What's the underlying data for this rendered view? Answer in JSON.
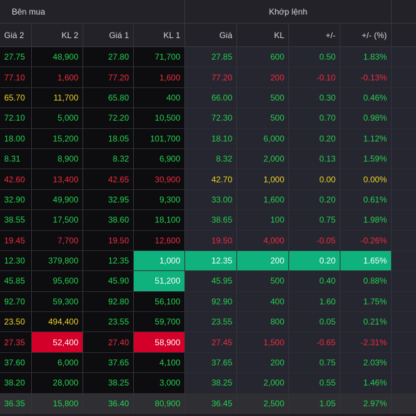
{
  "groups": {
    "buy": "Bên mua",
    "match": "Khớp lệnh"
  },
  "columns": [
    "Giá 2",
    "KL 2",
    "Giá 1",
    "KL 1",
    "Giá",
    "KL",
    "+/-",
    "+/- (%)"
  ],
  "colors": {
    "up": "#22d34e",
    "down": "#ef2b3f",
    "ref": "#ecd524",
    "flash_up": "#0fb27d",
    "flash_down": "#d3002a"
  },
  "rows": [
    {
      "cells": [
        "27.75",
        "48,900",
        "27.80",
        "71,700",
        "27.85",
        "600",
        "0.50",
        "1.83%"
      ],
      "colors": [
        "g",
        "g",
        "g",
        "g",
        "g",
        "g",
        "g",
        "g"
      ],
      "hl": [
        "",
        "",
        "",
        "",
        "",
        "",
        "",
        ""
      ]
    },
    {
      "cells": [
        "77.10",
        "1,600",
        "77.20",
        "1,600",
        "77.20",
        "200",
        "-0.10",
        "-0.13%"
      ],
      "colors": [
        "r",
        "r",
        "r",
        "r",
        "r",
        "r",
        "r",
        "r"
      ],
      "hl": [
        "",
        "",
        "",
        "",
        "",
        "",
        "",
        ""
      ]
    },
    {
      "cells": [
        "65.70",
        "11,700",
        "65.80",
        "400",
        "66.00",
        "500",
        "0.30",
        "0.46%"
      ],
      "colors": [
        "y",
        "y",
        "g",
        "g",
        "g",
        "g",
        "g",
        "g"
      ],
      "hl": [
        "",
        "",
        "",
        "",
        "",
        "",
        "",
        ""
      ]
    },
    {
      "cells": [
        "72.10",
        "5,000",
        "72.20",
        "10,500",
        "72.30",
        "500",
        "0.70",
        "0.98%"
      ],
      "colors": [
        "g",
        "g",
        "g",
        "g",
        "g",
        "g",
        "g",
        "g"
      ],
      "hl": [
        "",
        "",
        "",
        "",
        "",
        "",
        "",
        ""
      ]
    },
    {
      "cells": [
        "18.00",
        "15,200",
        "18.05",
        "101,700",
        "18.10",
        "6,000",
        "0.20",
        "1.12%"
      ],
      "colors": [
        "g",
        "g",
        "g",
        "g",
        "g",
        "g",
        "g",
        "g"
      ],
      "hl": [
        "",
        "",
        "",
        "",
        "",
        "",
        "",
        ""
      ]
    },
    {
      "cells": [
        "8.31",
        "8,900",
        "8.32",
        "6,900",
        "8.32",
        "2,000",
        "0.13",
        "1.59%"
      ],
      "colors": [
        "g",
        "g",
        "g",
        "g",
        "g",
        "g",
        "g",
        "g"
      ],
      "hl": [
        "",
        "",
        "",
        "",
        "",
        "",
        "",
        ""
      ]
    },
    {
      "cells": [
        "42.60",
        "13,400",
        "42.65",
        "30,900",
        "42.70",
        "1,000",
        "0.00",
        "0.00%"
      ],
      "colors": [
        "r",
        "r",
        "r",
        "r",
        "y",
        "y",
        "y",
        "y"
      ],
      "hl": [
        "",
        "",
        "",
        "",
        "",
        "",
        "",
        ""
      ]
    },
    {
      "cells": [
        "32.90",
        "49,900",
        "32.95",
        "9,300",
        "33.00",
        "1,600",
        "0.20",
        "0.61%"
      ],
      "colors": [
        "g",
        "g",
        "g",
        "g",
        "g",
        "g",
        "g",
        "g"
      ],
      "hl": [
        "",
        "",
        "",
        "",
        "",
        "",
        "",
        ""
      ]
    },
    {
      "cells": [
        "38.55",
        "17,500",
        "38.60",
        "18,100",
        "38.65",
        "100",
        "0.75",
        "1.98%"
      ],
      "colors": [
        "g",
        "g",
        "g",
        "g",
        "g",
        "g",
        "g",
        "g"
      ],
      "hl": [
        "",
        "",
        "",
        "",
        "",
        "",
        "",
        ""
      ]
    },
    {
      "cells": [
        "19.45",
        "7,700",
        "19.50",
        "12,600",
        "19.50",
        "4,000",
        "-0.05",
        "-0.26%"
      ],
      "colors": [
        "r",
        "r",
        "r",
        "r",
        "r",
        "r",
        "r",
        "r"
      ],
      "hl": [
        "",
        "",
        "",
        "",
        "",
        "",
        "",
        ""
      ]
    },
    {
      "cells": [
        "12.30",
        "379,800",
        "12.35",
        "1,000",
        "12.35",
        "200",
        "0.20",
        "1.65%"
      ],
      "colors": [
        "g",
        "g",
        "g",
        "w",
        "w",
        "w",
        "w",
        "w"
      ],
      "hl": [
        "",
        "",
        "",
        "hl-green",
        "hl-green",
        "hl-green",
        "hl-green",
        "hl-green"
      ]
    },
    {
      "cells": [
        "45.85",
        "95,600",
        "45.90",
        "51,200",
        "45.95",
        "500",
        "0.40",
        "0.88%"
      ],
      "colors": [
        "g",
        "g",
        "g",
        "w",
        "g",
        "g",
        "g",
        "g"
      ],
      "hl": [
        "",
        "",
        "",
        "hl-green",
        "",
        "",
        "",
        ""
      ]
    },
    {
      "cells": [
        "92.70",
        "59,300",
        "92.80",
        "56,100",
        "92.90",
        "400",
        "1.60",
        "1.75%"
      ],
      "colors": [
        "g",
        "g",
        "g",
        "g",
        "g",
        "g",
        "g",
        "g"
      ],
      "hl": [
        "",
        "",
        "",
        "",
        "",
        "",
        "",
        ""
      ]
    },
    {
      "cells": [
        "23.50",
        "494,400",
        "23.55",
        "59,700",
        "23.55",
        "800",
        "0.05",
        "0.21%"
      ],
      "colors": [
        "y",
        "y",
        "g",
        "g",
        "g",
        "g",
        "g",
        "g"
      ],
      "hl": [
        "",
        "",
        "",
        "",
        "",
        "",
        "",
        ""
      ]
    },
    {
      "cells": [
        "27.35",
        "52,400",
        "27.40",
        "58,900",
        "27.45",
        "1,500",
        "-0.65",
        "-2.31%"
      ],
      "colors": [
        "r",
        "w",
        "r",
        "w",
        "r",
        "r",
        "r",
        "r"
      ],
      "hl": [
        "",
        "hl-red",
        "",
        "hl-red",
        "",
        "",
        "",
        ""
      ]
    },
    {
      "cells": [
        "37.60",
        "6,000",
        "37.65",
        "4,100",
        "37.65",
        "200",
        "0.75",
        "2.03%"
      ],
      "colors": [
        "g",
        "g",
        "g",
        "g",
        "g",
        "g",
        "g",
        "g"
      ],
      "hl": [
        "",
        "",
        "",
        "",
        "",
        "",
        "",
        ""
      ]
    },
    {
      "cells": [
        "38.20",
        "28,000",
        "38.25",
        "3,000",
        "38.25",
        "2,000",
        "0.55",
        "1.46%"
      ],
      "colors": [
        "g",
        "g",
        "g",
        "g",
        "g",
        "g",
        "g",
        "g"
      ],
      "hl": [
        "",
        "",
        "",
        "",
        "",
        "",
        "",
        ""
      ]
    },
    {
      "cells": [
        "36.35",
        "15,800",
        "36.40",
        "80,900",
        "36.45",
        "2,500",
        "1.05",
        "2.97%"
      ],
      "colors": [
        "g",
        "g",
        "g",
        "g",
        "g",
        "g",
        "g",
        "g"
      ],
      "hl": [
        "",
        "",
        "",
        "",
        "",
        "",
        "",
        ""
      ]
    }
  ]
}
